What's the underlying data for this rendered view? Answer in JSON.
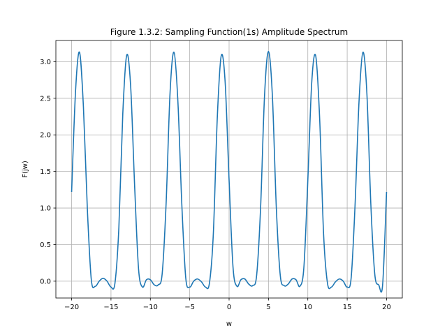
{
  "chart_data": {
    "type": "line",
    "title": "Figure 1.3.2: Sampling Function(1s) Amplitude Spectrum",
    "xlabel": "w",
    "ylabel": "F(jw)",
    "xlim": [
      -22,
      22
    ],
    "ylim": [
      -0.23,
      3.29
    ],
    "x_ticks": [
      -20,
      -15,
      -10,
      -5,
      0,
      5,
      10,
      15,
      20
    ],
    "x_tick_labels": [
      "−20",
      "−15",
      "−10",
      "−5",
      "0",
      "5",
      "10",
      "15",
      "20"
    ],
    "y_ticks": [
      0.0,
      0.5,
      1.0,
      1.5,
      2.0,
      2.5,
      3.0
    ],
    "y_tick_labels": [
      "0.0",
      "0.5",
      "1.0",
      "1.5",
      "2.0",
      "2.5",
      "3.0"
    ],
    "grid": true,
    "legend": "none",
    "series": [
      {
        "color": "#1f77b4",
        "x": [
          -20.0,
          -19.5,
          -19.0,
          -18.5,
          -18.0,
          -17.5,
          -17.0,
          -16.5,
          -16.0,
          -15.5,
          -15.0,
          -14.5,
          -14.0,
          -13.5,
          -13.0,
          -12.5,
          -12.0,
          -11.5,
          -11.0,
          -10.5,
          -10.0,
          -9.5,
          -9.0,
          -8.5,
          -8.0,
          -7.5,
          -7.0,
          -6.5,
          -6.0,
          -5.5,
          -5.0,
          -4.5,
          -4.0,
          -3.5,
          -3.0,
          -2.5,
          -2.0,
          -1.5,
          -1.0,
          -0.5,
          0.0,
          0.5,
          1.0,
          1.5,
          2.0,
          2.5,
          3.0,
          3.5,
          4.0,
          4.5,
          5.0,
          5.5,
          6.0,
          6.5,
          7.0,
          7.5,
          8.0,
          8.5,
          9.0,
          9.5,
          10.0,
          10.5,
          11.0,
          11.5,
          12.0,
          12.5,
          13.0,
          13.5,
          14.0,
          14.5,
          15.0,
          15.5,
          16.0,
          16.5,
          17.0,
          17.5,
          18.0,
          18.5,
          19.0,
          19.5,
          20.0
        ],
        "y": [
          1.22,
          2.6,
          3.13,
          2.38,
          0.98,
          0.02,
          -0.07,
          0.0,
          0.04,
          0.0,
          -0.08,
          -0.03,
          0.73,
          2.29,
          3.09,
          2.66,
          1.31,
          0.17,
          -0.08,
          0.02,
          0.02,
          -0.05,
          -0.05,
          0.1,
          1.06,
          2.57,
          3.13,
          2.45,
          1.04,
          0.04,
          -0.08,
          0.0,
          0.03,
          -0.01,
          -0.08,
          -0.03,
          0.65,
          2.23,
          3.08,
          2.72,
          1.38,
          0.19,
          -0.07,
          0.02,
          0.03,
          -0.04,
          -0.06,
          0.08,
          1.0,
          2.53,
          3.14,
          2.53,
          1.0,
          0.08,
          -0.06,
          -0.04,
          0.03,
          0.02,
          -0.07,
          0.19,
          1.38,
          2.72,
          3.08,
          2.23,
          0.65,
          -0.03,
          -0.08,
          -0.01,
          0.03,
          0.0,
          -0.08,
          0.04,
          1.04,
          2.45,
          3.13,
          2.57,
          1.06,
          0.1,
          -0.05,
          -0.05,
          1.22
        ]
      }
    ]
  }
}
